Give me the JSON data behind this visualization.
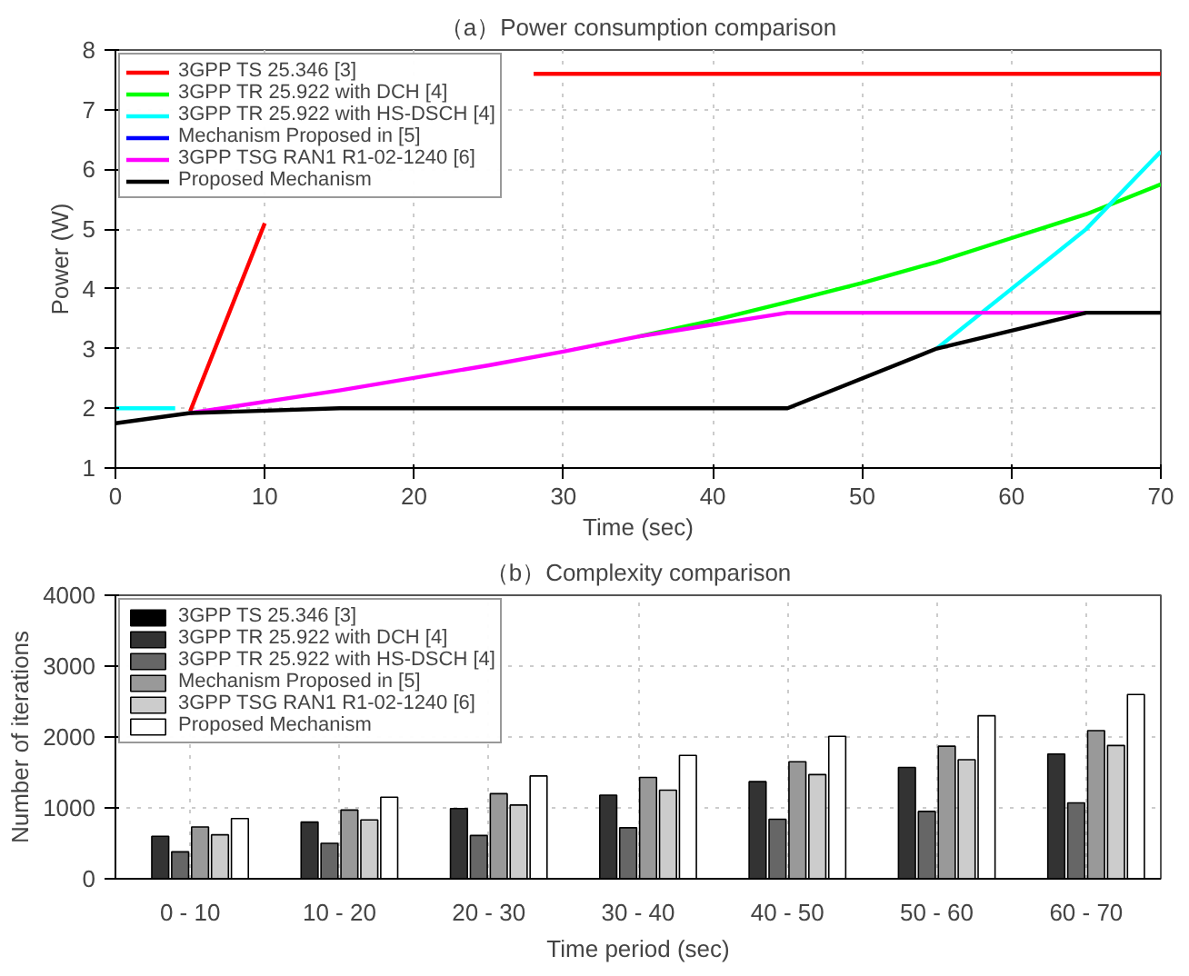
{
  "chart_data": [
    {
      "type": "line",
      "title": "（a）Power consumption comparison",
      "xlabel": "Time (sec)",
      "ylabel": "Power (W)",
      "xlim": [
        0,
        70
      ],
      "ylim": [
        1,
        8
      ],
      "xticks": [
        0,
        10,
        20,
        30,
        40,
        50,
        60,
        70
      ],
      "yticks": [
        1,
        2,
        3,
        4,
        5,
        6,
        7,
        8
      ],
      "grid": true,
      "legend": "top left",
      "line_style": "solid",
      "series": [
        {
          "name": "3GPP TS 25.346 [3]",
          "color": "#ff0000",
          "x": [
            5,
            10,
            11,
            28,
            70
          ],
          "values": [
            1.95,
            5.1,
            null,
            7.6,
            7.6
          ]
        },
        {
          "name": "3GPP TR 25.922 with DCH [4]",
          "color": "#00ff00",
          "x": [
            35,
            40,
            45,
            50,
            55,
            60,
            65,
            70
          ],
          "values": [
            3.2,
            3.47,
            3.78,
            4.1,
            4.45,
            4.85,
            5.25,
            5.75
          ]
        },
        {
          "name": "3GPP TR 25.922 with HS-DSCH [4]",
          "color": "#00ffff",
          "x": [
            0,
            4,
            5,
            55,
            60,
            65,
            70
          ],
          "values": [
            2,
            2,
            null,
            3,
            4,
            5,
            6.3
          ]
        },
        {
          "name": "Mechanism Proposed in [5]",
          "color": "#0000ff"
        },
        {
          "name": "3GPP TSG RAN1 R1-02-1240 [6]",
          "color": "#ff00ff",
          "x": [
            5,
            15,
            25,
            30,
            35,
            45,
            65
          ],
          "values": [
            1.92,
            2.3,
            2.72,
            2.95,
            3.2,
            3.6,
            3.6
          ]
        },
        {
          "name": "Proposed Mechanism",
          "color": "#000000",
          "x": [
            0,
            5,
            15,
            45,
            55,
            65,
            70
          ],
          "values": [
            1.75,
            1.92,
            2,
            2,
            3,
            3.6,
            3.6
          ]
        }
      ]
    },
    {
      "type": "bar",
      "title": "（b）Complexity comparison",
      "xlabel": "Time period (sec)",
      "ylabel": "Number of iterations",
      "categories": [
        "0 - 10",
        "10 - 20",
        "20 - 30",
        "30 - 40",
        "40 - 50",
        "50 - 60",
        "60 - 70"
      ],
      "ylim": [
        0,
        4000
      ],
      "yticks": [
        0,
        1000,
        2000,
        3000,
        4000
      ],
      "grid": true,
      "legend": "top left",
      "series": [
        {
          "name": "3GPP TS 25.346 [3]",
          "color": "#000000",
          "values": [
            0,
            0,
            0,
            0,
            0,
            0,
            0
          ]
        },
        {
          "name": "3GPP TR 25.922 with DCH [4]",
          "color": "#333333",
          "values": [
            600,
            800,
            990,
            1180,
            1370,
            1570,
            1760
          ]
        },
        {
          "name": "3GPP TR 25.922 with HS-DSCH [4]",
          "color": "#666666",
          "values": [
            380,
            500,
            610,
            720,
            840,
            950,
            1070
          ]
        },
        {
          "name": "Mechanism Proposed in [5]",
          "color": "#999999",
          "values": [
            730,
            970,
            1200,
            1430,
            1650,
            1870,
            2090
          ]
        },
        {
          "name": "3GPP TSG RAN1 R1-02-1240 [6]",
          "color": "#cccccc",
          "values": [
            620,
            830,
            1040,
            1250,
            1470,
            1680,
            1880
          ]
        },
        {
          "name": "Proposed Mechanism",
          "color": "#ffffff",
          "values": [
            850,
            1150,
            1450,
            1740,
            2010,
            2300,
            2600
          ]
        }
      ]
    }
  ]
}
